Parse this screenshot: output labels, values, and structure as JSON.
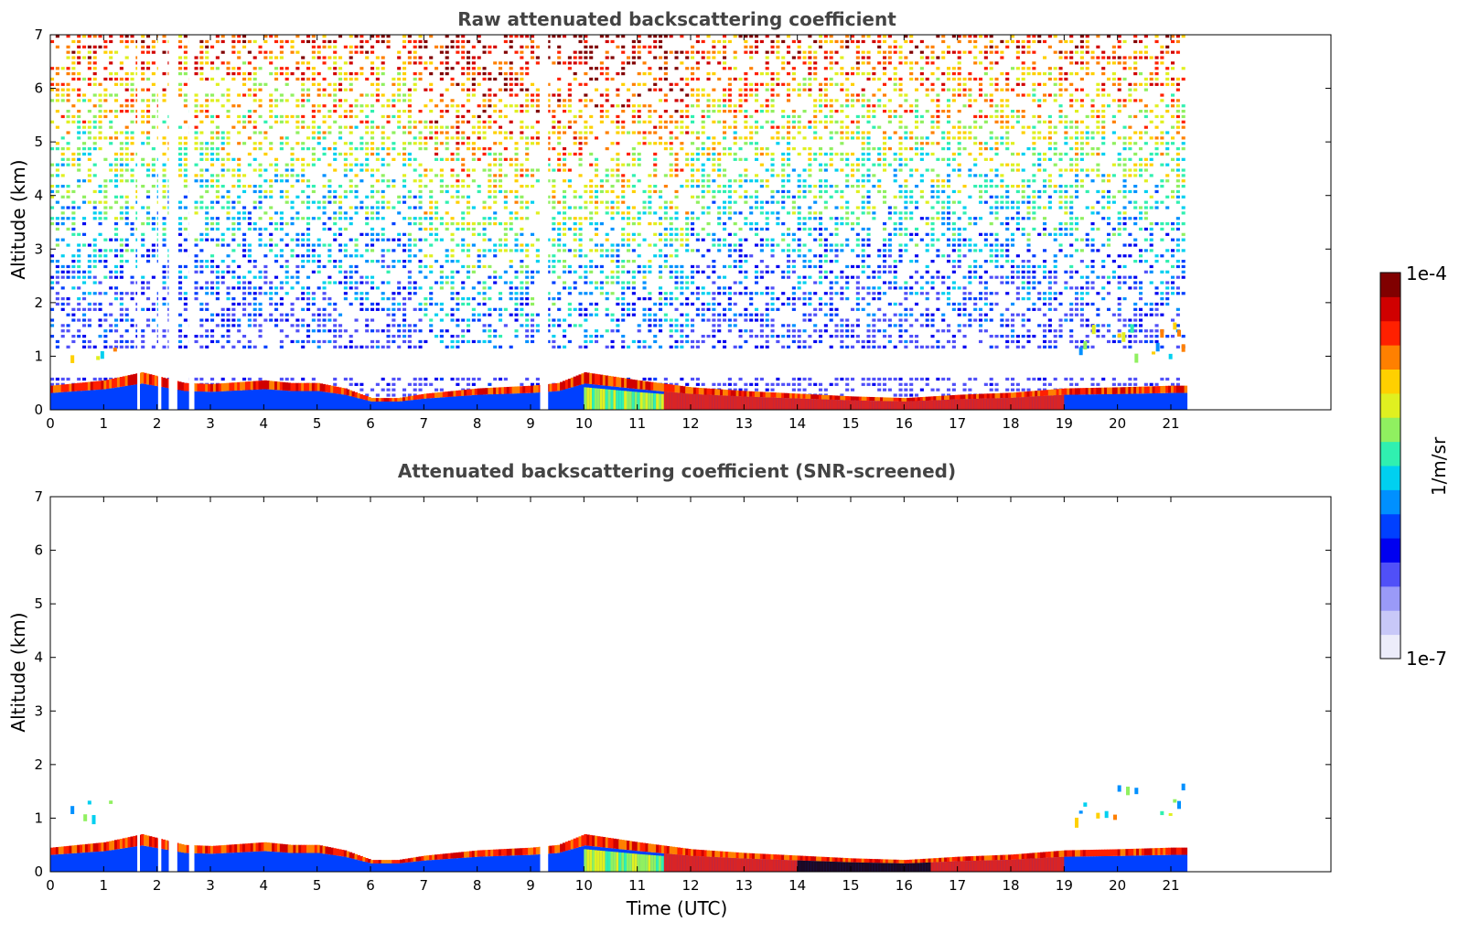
{
  "chart_data": [
    {
      "type": "heatmap",
      "title": "Raw attenuated backscattering coefficient",
      "xlabel": "",
      "ylabel": "Altitude (km)",
      "xlim": [
        0,
        24
      ],
      "ylim": [
        0,
        7
      ],
      "x_ticks": [
        "0",
        "1",
        "2",
        "3",
        "4",
        "5",
        "6",
        "7",
        "8",
        "9",
        "10",
        "11",
        "12",
        "13",
        "14",
        "15",
        "16",
        "17",
        "18",
        "19",
        "20",
        "21"
      ],
      "y_ticks": [
        "0",
        "1",
        "2",
        "3",
        "4",
        "5",
        "6",
        "7"
      ],
      "data_end_time": 21.3,
      "gaps": [
        [
          1.63,
          1.68
        ],
        [
          2.02,
          2.08
        ],
        [
          2.22,
          2.38
        ],
        [
          2.6,
          2.7
        ],
        [
          9.18,
          9.33
        ]
      ],
      "layer_top_profile": {
        "time": [
          0,
          1,
          1.7,
          2.5,
          3,
          4,
          4.5,
          5,
          5.5,
          6,
          6.5,
          7,
          8,
          9,
          9.5,
          10,
          11,
          12,
          13,
          14,
          15,
          16,
          17,
          18,
          19,
          20,
          21,
          21.3
        ],
        "altitude": [
          0.45,
          0.55,
          0.7,
          0.5,
          0.48,
          0.55,
          0.5,
          0.5,
          0.4,
          0.22,
          0.22,
          0.3,
          0.4,
          0.45,
          0.5,
          0.7,
          0.55,
          0.42,
          0.35,
          0.3,
          0.25,
          0.22,
          0.28,
          0.32,
          0.4,
          0.42,
          0.45,
          0.45
        ]
      },
      "elevated_layers": [
        {
          "time": [
            0.3,
            1.3
          ],
          "altitude": [
            1.0,
            1.35
          ]
        },
        {
          "time": [
            19.2,
            21.3
          ],
          "altitude": [
            1.0,
            1.7
          ]
        }
      ],
      "background_noise": true
    },
    {
      "type": "heatmap",
      "title": "Attenuated backscattering coefficient (SNR-screened)",
      "xlabel": "Time (UTC)",
      "ylabel": "Altitude (km)",
      "xlim": [
        0,
        24
      ],
      "ylim": [
        0,
        7
      ],
      "x_ticks": [
        "0",
        "1",
        "2",
        "3",
        "4",
        "5",
        "6",
        "7",
        "8",
        "9",
        "10",
        "11",
        "12",
        "13",
        "14",
        "15",
        "16",
        "17",
        "18",
        "19",
        "20",
        "21"
      ],
      "y_ticks": [
        "0",
        "1",
        "2",
        "3",
        "4",
        "5",
        "6",
        "7"
      ],
      "data_end_time": 21.3,
      "gaps": [
        [
          1.63,
          1.68
        ],
        [
          2.02,
          2.08
        ],
        [
          2.22,
          2.38
        ],
        [
          2.6,
          2.7
        ],
        [
          9.18,
          9.33
        ]
      ],
      "layer_top_profile": {
        "time": [
          0,
          1,
          1.7,
          2.5,
          3,
          4,
          4.5,
          5,
          5.5,
          6,
          6.5,
          7,
          8,
          9,
          9.5,
          10,
          11,
          12,
          13,
          14,
          15,
          16,
          17,
          18,
          19,
          20,
          21,
          21.3
        ],
        "altitude": [
          0.45,
          0.55,
          0.7,
          0.5,
          0.48,
          0.55,
          0.5,
          0.5,
          0.4,
          0.22,
          0.22,
          0.3,
          0.4,
          0.45,
          0.5,
          0.7,
          0.55,
          0.42,
          0.35,
          0.3,
          0.25,
          0.22,
          0.28,
          0.32,
          0.4,
          0.42,
          0.45,
          0.45
        ]
      },
      "elevated_layers": [
        {
          "time": [
            0.3,
            1.3
          ],
          "altitude": [
            1.0,
            1.35
          ]
        },
        {
          "time": [
            19.2,
            21.3
          ],
          "altitude": [
            1.0,
            1.7
          ]
        }
      ],
      "background_noise": false
    }
  ],
  "colorbar": {
    "label": "1/m/sr",
    "max_label": "1e-4",
    "min_label": "1e-7",
    "scale": "log",
    "range": [
      1e-07,
      0.0001
    ],
    "colors": [
      "#ececfa",
      "#c8c8f8",
      "#9a9af8",
      "#5050f8",
      "#0000f0",
      "#0040ff",
      "#0090ff",
      "#00d0f0",
      "#30f0b0",
      "#90f060",
      "#e0f020",
      "#ffd000",
      "#ff8000",
      "#ff2000",
      "#d00000",
      "#800000"
    ]
  }
}
